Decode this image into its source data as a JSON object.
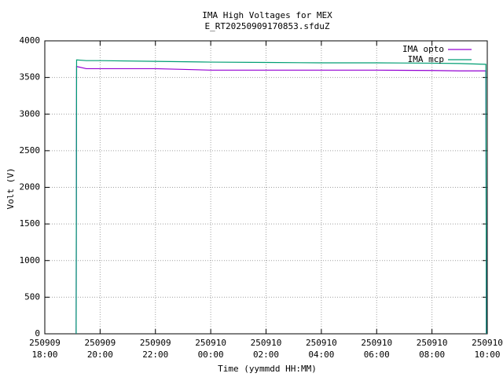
{
  "chart_data": {
    "type": "line",
    "title": "IMA High Voltages for MEX",
    "subtitle": "E_RT20250909170853.sfduZ",
    "x_label": "Time (yymmdd HH:MM)",
    "y_label": "Volt (V)",
    "x": [
      "250909 19:08",
      "250909 19:09",
      "250909 19:30",
      "250909 20:00",
      "250909 22:00",
      "250910 00:00",
      "250910 02:00",
      "250910 04:00",
      "250910 06:00",
      "250910 08:00",
      "250910 09:00",
      "250910 09:57",
      "250910 09:58"
    ],
    "series": [
      {
        "name": "IMA opto",
        "color": "#9400d3",
        "values": [
          0,
          3650,
          3620,
          3620,
          3620,
          3600,
          3600,
          3600,
          3600,
          3595,
          3590,
          3590,
          0
        ]
      },
      {
        "name": "IMA mcp",
        "color": "#009e73",
        "values": [
          0,
          3740,
          3730,
          3730,
          3720,
          3710,
          3705,
          3700,
          3700,
          3695,
          3690,
          3680,
          0
        ]
      }
    ],
    "xlim": [
      "250909 18:00",
      "250910 10:00"
    ],
    "xticks": [
      "250909 18:00",
      "250909 20:00",
      "250909 22:00",
      "250910 00:00",
      "250910 02:00",
      "250910 04:00",
      "250910 06:00",
      "250910 08:00",
      "250910 10:00"
    ],
    "ylim": [
      0,
      4000
    ],
    "yticks": [
      0,
      500,
      1000,
      1500,
      2000,
      2500,
      3000,
      3500,
      4000
    ],
    "grid": true,
    "legend": "top-right"
  }
}
